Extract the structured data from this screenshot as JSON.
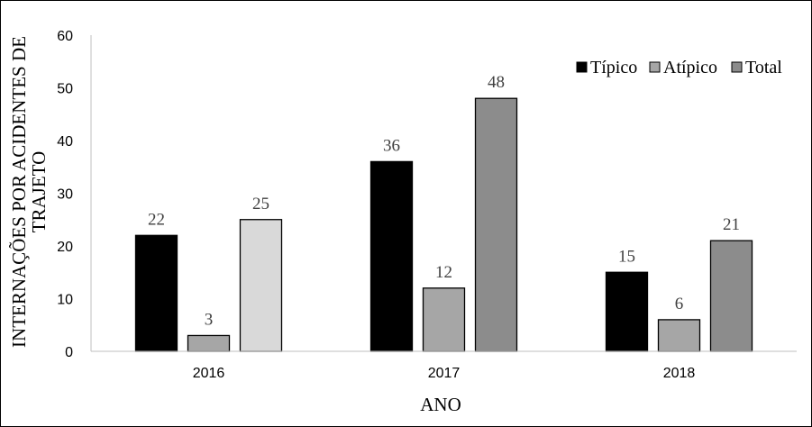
{
  "chart_data": {
    "type": "bar",
    "title": "",
    "xlabel": "ANO",
    "ylabel": "INTERNAÇÕES POR ACIDENTES DE TRAJETO",
    "categories": [
      "2016",
      "2017",
      "2018"
    ],
    "series": [
      {
        "name": "Típico",
        "values": [
          22,
          36,
          15
        ]
      },
      {
        "name": "Atípico",
        "values": [
          3,
          12,
          6
        ]
      },
      {
        "name": "Total",
        "values": [
          25,
          48,
          21
        ]
      }
    ],
    "bar_colors": [
      [
        "#000000",
        "#a6a6a6",
        "#d9d9d9"
      ],
      [
        "#000000",
        "#a6a6a6",
        "#8c8c8c"
      ],
      [
        "#000000",
        "#a6a6a6",
        "#8c8c8c"
      ]
    ],
    "legend_colors": [
      "#000000",
      "#a6a6a6",
      "#8c8c8c"
    ],
    "yticks": [
      "0",
      "10",
      "20",
      "30",
      "40",
      "50",
      "60"
    ],
    "ylim": [
      0,
      60
    ],
    "grid": false,
    "legend_position": "top-right"
  }
}
